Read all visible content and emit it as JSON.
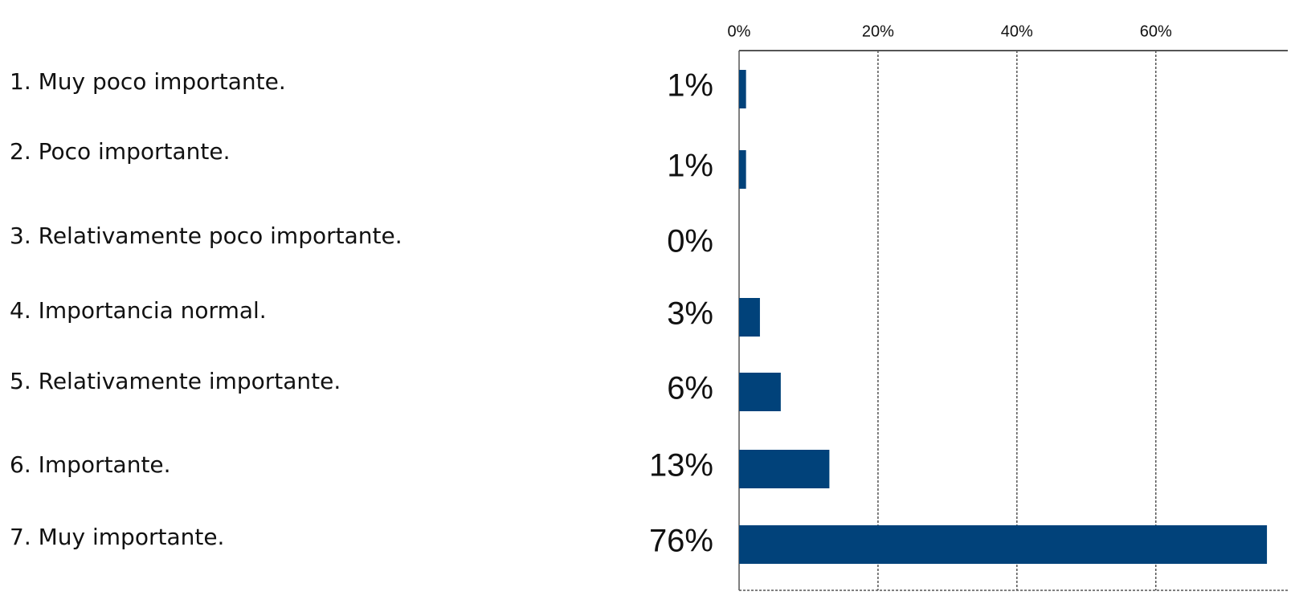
{
  "chart_data": {
    "type": "bar",
    "orientation": "horizontal",
    "categories": [
      "1. Muy poco importante.",
      "2. Poco importante.",
      "3. Relativamente poco importante.",
      "4. Importancia normal.",
      "5. Relativamente importante.",
      "6. Importante.",
      "7. Muy importante."
    ],
    "values": [
      1,
      1,
      0,
      3,
      6,
      13,
      76
    ],
    "value_labels": [
      "1%",
      "1%",
      "0%",
      "3%",
      "6%",
      "13%",
      "76%"
    ],
    "color": "#01427a",
    "xlim": [
      0,
      79
    ],
    "xticks": [
      {
        "value": 0,
        "label": "0%"
      },
      {
        "value": 20,
        "label": "20%"
      },
      {
        "value": 40,
        "label": "40%"
      },
      {
        "value": 60,
        "label": "60%"
      }
    ],
    "grid": true
  }
}
